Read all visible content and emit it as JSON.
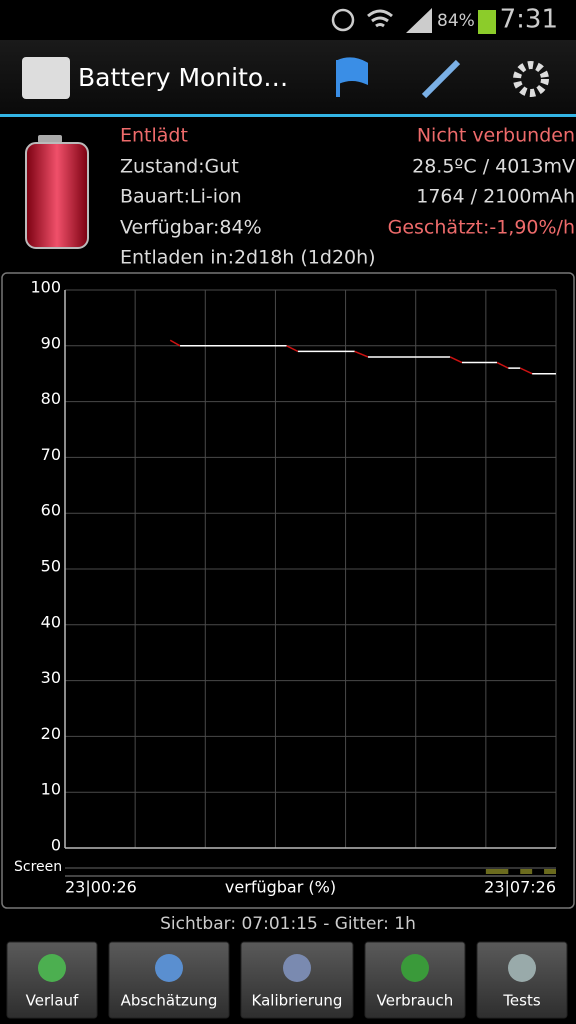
{
  "status_bar": {
    "battery": "84%",
    "time": "7:31"
  },
  "action_bar": {
    "title": "Battery Monito…"
  },
  "info": {
    "left": [
      "Entlädt",
      "Zustand:Gut",
      "Bauart:Li-ion",
      "Verfügbar:84%",
      "Entladen in:2d18h (1d20h)"
    ],
    "right": [
      "Nicht verbunden",
      "28.5ºC / 4013mV",
      "1764 / 2100mAh",
      "Geschätzt:-1,90%/h"
    ]
  },
  "chart_data": {
    "type": "line",
    "x": [
      1.5,
      1.64,
      3.16,
      3.32,
      4.13,
      4.32,
      5.49,
      5.66,
      6.16,
      6.32,
      6.49,
      6.66,
      7.0
    ],
    "values": [
      91,
      90,
      90,
      89,
      89,
      88,
      88,
      87,
      87,
      86,
      86,
      85,
      85
    ],
    "color": "#ffffff",
    "drop_color": "#cc1111",
    "xlim": [
      0,
      7
    ],
    "xticks": [
      {
        "value": 0,
        "label": "23|00:26"
      },
      {
        "value": 7,
        "label": "23|07:26"
      }
    ],
    "xgrid": [
      0,
      1,
      2,
      3,
      4,
      5,
      6,
      7
    ],
    "ylim": [
      0,
      100
    ],
    "yticks": [
      0,
      10,
      20,
      30,
      40,
      50,
      60,
      70,
      80,
      90,
      100
    ],
    "grid": true,
    "xlabel": "verfügbar (%)",
    "screen_label": "Screen",
    "screen_on": [
      {
        "start": 6.0,
        "end": 6.32
      },
      {
        "start": 6.49,
        "end": 6.66
      },
      {
        "start": 6.83,
        "end": 7.0
      }
    ],
    "screen_color": "#6b6b1e"
  },
  "footer": "Sichtbar: 07:01:15 - Gitter: 1h",
  "tabs": [
    "Verlauf",
    "Abschätzung",
    "Kalibrierung",
    "Verbrauch",
    "Tests"
  ]
}
